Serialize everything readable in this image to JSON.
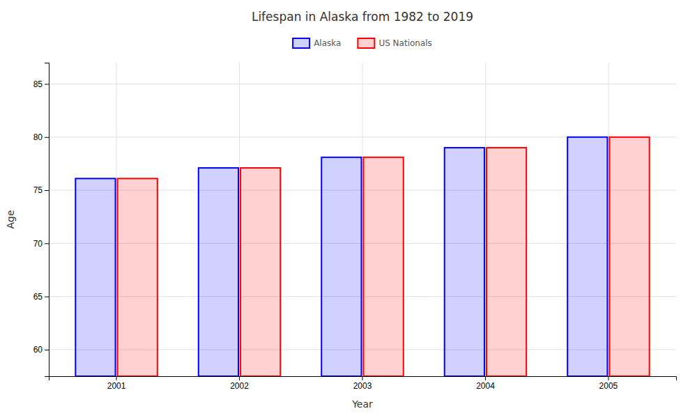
{
  "chart_data": {
    "type": "bar",
    "title": "Lifespan in Alaska from 1982 to 2019",
    "xlabel": "Year",
    "ylabel": "Age",
    "categories": [
      "2001",
      "2002",
      "2003",
      "2004",
      "2005"
    ],
    "series": [
      {
        "name": "Alaska",
        "color": "#0000ff",
        "values": [
          76.1,
          77.1,
          78.1,
          79.0,
          80.0
        ]
      },
      {
        "name": "US Nationals",
        "color": "#ff0000",
        "values": [
          76.1,
          77.1,
          78.1,
          79.0,
          80.0
        ]
      }
    ],
    "ylim": [
      57.5,
      87
    ],
    "yticks": [
      60,
      65,
      70,
      75,
      80,
      85
    ],
    "grid": true,
    "legend": "top"
  }
}
